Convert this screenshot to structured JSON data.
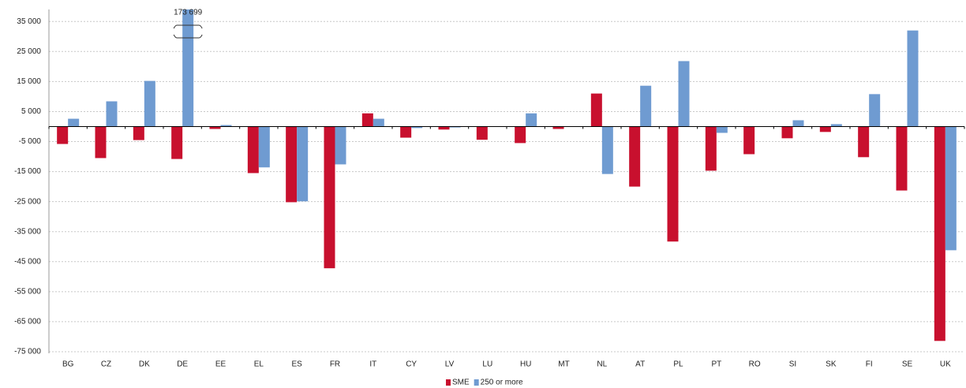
{
  "chart_data": {
    "type": "bar",
    "categories": [
      "BG",
      "CZ",
      "DK",
      "DE",
      "EE",
      "EL",
      "ES",
      "FR",
      "IT",
      "CY",
      "LV",
      "LU",
      "HU",
      "MT",
      "NL",
      "AT",
      "PL",
      "PT",
      "RO",
      "SI",
      "SK",
      "FI",
      "SE",
      "UK"
    ],
    "series": [
      {
        "name": "SME",
        "color": "#c8102e",
        "values": [
          -5800,
          -10500,
          -4500,
          -10800,
          -800,
          -15500,
          -25200,
          -47200,
          4400,
          -3700,
          -1000,
          -4400,
          -5500,
          -800,
          11000,
          -20000,
          -38300,
          -14700,
          -9200,
          -3900,
          -1800,
          -10200,
          -21300,
          -71400
        ]
      },
      {
        "name": "250 or more",
        "color": "#6f9bd1",
        "values": [
          2600,
          8400,
          15200,
          173699,
          500,
          -13600,
          -24900,
          -12600,
          2600,
          -500,
          -300,
          0,
          4400,
          0,
          -15800,
          13600,
          21800,
          -2100,
          0,
          2100,
          800,
          10800,
          32000,
          -41200
        ],
        "value_labels": [
          null,
          null,
          null,
          "173 699",
          null,
          null,
          null,
          null,
          null,
          null,
          null,
          null,
          null,
          null,
          null,
          null,
          null,
          null,
          null,
          null,
          null,
          null,
          null,
          null
        ]
      }
    ],
    "ylim": [
      -75000,
      39000
    ],
    "yticks": [
      {
        "value": 35000,
        "label": "35 000"
      },
      {
        "value": 25000,
        "label": "25 000"
      },
      {
        "value": 15000,
        "label": "15 000"
      },
      {
        "value": 5000,
        "label": "5 000"
      },
      {
        "value": -5000,
        "label": "-5 000"
      },
      {
        "value": -15000,
        "label": "-15 000"
      },
      {
        "value": -25000,
        "label": "-25 000"
      },
      {
        "value": -35000,
        "label": "-35 000"
      },
      {
        "value": -45000,
        "label": "-45 000"
      },
      {
        "value": -55000,
        "label": "-55 000"
      },
      {
        "value": -65000,
        "label": "-65 000"
      },
      {
        "value": -75000,
        "label": "-75 000"
      }
    ],
    "grid": true,
    "legend": "bottom"
  }
}
